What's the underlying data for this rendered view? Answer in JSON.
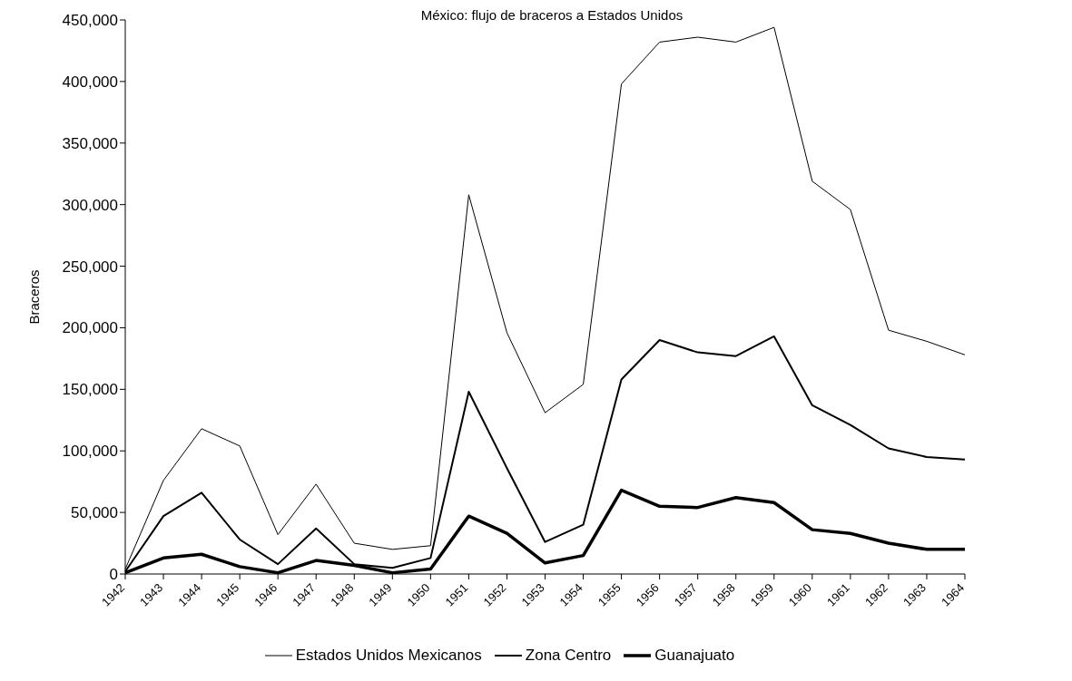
{
  "chart_data": {
    "type": "line",
    "title": "México: flujo de braceros a Estados Unidos",
    "ylabel": "Braceros",
    "categories": [
      "1942",
      "1943",
      "1944",
      "1945",
      "1946",
      "1947",
      "1948",
      "1949",
      "1950",
      "1951",
      "1952",
      "1953",
      "1954",
      "1955",
      "1956",
      "1957",
      "1958",
      "1959",
      "1960",
      "1961",
      "1962",
      "1963",
      "1964"
    ],
    "series": [
      {
        "name": "Estados Unidos Mexicanos",
        "color": "#000000",
        "values": [
          4000,
          76000,
          118000,
          104000,
          32000,
          73000,
          25000,
          20000,
          23000,
          308000,
          196000,
          131000,
          154000,
          398000,
          432000,
          436000,
          432000,
          444000,
          319000,
          296000,
          198000,
          189000,
          178000
        ]
      },
      {
        "name": "Zona Centro",
        "color": "#000000",
        "values": [
          2000,
          47000,
          66000,
          28000,
          8000,
          37000,
          8000,
          5000,
          13000,
          148000,
          86000,
          26000,
          40000,
          158000,
          190000,
          180000,
          177000,
          193000,
          137000,
          121000,
          102000,
          95000,
          93000
        ]
      },
      {
        "name": "Guanajuato",
        "color": "#000000",
        "values": [
          1000,
          13000,
          16000,
          6000,
          1000,
          11000,
          7000,
          1000,
          4000,
          47000,
          33000,
          9000,
          15000,
          68000,
          55000,
          54000,
          62000,
          58000,
          36000,
          33000,
          25000,
          20000,
          20000
        ]
      }
    ],
    "ylim": [
      0,
      450000
    ],
    "yticks": [
      0,
      {
        "value": 50000,
        "label": "50,000"
      },
      {
        "value": 100000,
        "label": "100,000"
      },
      {
        "value": 150000,
        "label": "150,000"
      },
      {
        "value": 200000,
        "label": "200,000"
      },
      {
        "value": 250000,
        "label": "250,000"
      },
      {
        "value": 300000,
        "label": "300,000"
      },
      {
        "value": 350000,
        "label": "350,000"
      },
      {
        "value": 400000,
        "label": "400,000"
      },
      {
        "value": 450000,
        "label": "450,000"
      }
    ],
    "grid": false,
    "legend": "bottom",
    "marker": "none",
    "line_style": "solid"
  }
}
